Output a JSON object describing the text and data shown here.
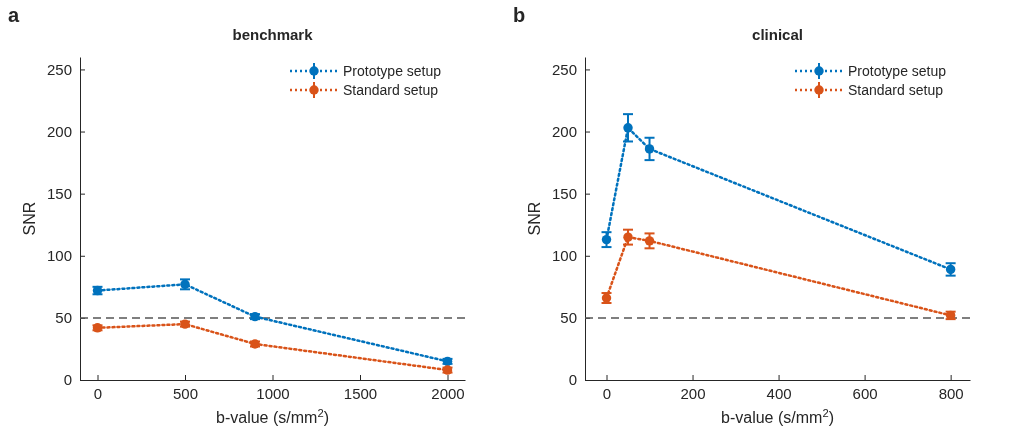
{
  "chart_data": [
    {
      "type": "line",
      "title": "benchmark",
      "annotations": [
        "a"
      ],
      "xlabel": "b-value (s/mm$^{2}$)",
      "ylabel": "SNR",
      "x": [
        0,
        500,
        900,
        2000
      ],
      "xlim": [
        -100,
        2100
      ],
      "xticks": [
        0,
        500,
        1000,
        1500,
        2000
      ],
      "ylim": [
        0,
        260
      ],
      "yticks": [
        0,
        50,
        100,
        150,
        200,
        250
      ],
      "grid": false,
      "legend": "top right",
      "marker": "circle",
      "line_style": "dotted",
      "series": [
        {
          "name": "Prototype setup",
          "color": "#0072bd",
          "values": [
            72,
            77,
            51,
            15
          ],
          "errors": [
            3,
            4,
            2,
            2
          ]
        },
        {
          "name": "Standard setup",
          "color": "#d95319",
          "values": [
            42,
            45,
            29,
            8
          ],
          "errors": [
            2,
            2,
            2,
            2
          ]
        }
      ],
      "ref_lines": [
        {
          "axis": "y",
          "value": 50,
          "label": null,
          "color": "#555555",
          "line_style": "dashed"
        }
      ]
    },
    {
      "type": "line",
      "title": "clinical",
      "annotations": [
        "b"
      ],
      "xlabel": "b-value (s/mm$^{2}$)",
      "ylabel": "SNR",
      "x": [
        0,
        50,
        100,
        800
      ],
      "xlim": [
        -50,
        845
      ],
      "xticks": [
        0,
        200,
        400,
        600,
        800
      ],
      "ylim": [
        0,
        260
      ],
      "yticks": [
        0,
        50,
        100,
        150,
        200,
        250
      ],
      "grid": false,
      "legend": "top right",
      "marker": "circle",
      "line_style": "dotted",
      "series": [
        {
          "name": "Prototype setup",
          "color": "#0072bd",
          "values": [
            113,
            203,
            186,
            89
          ],
          "errors": [
            6,
            11,
            9,
            5
          ]
        },
        {
          "name": "Standard setup",
          "color": "#d95319",
          "values": [
            66,
            115,
            112,
            52
          ],
          "errors": [
            4,
            6,
            6,
            3
          ]
        }
      ],
      "ref_lines": [
        {
          "axis": "y",
          "value": 50,
          "label": null,
          "color": "#555555",
          "line_style": "dashed"
        }
      ]
    }
  ]
}
